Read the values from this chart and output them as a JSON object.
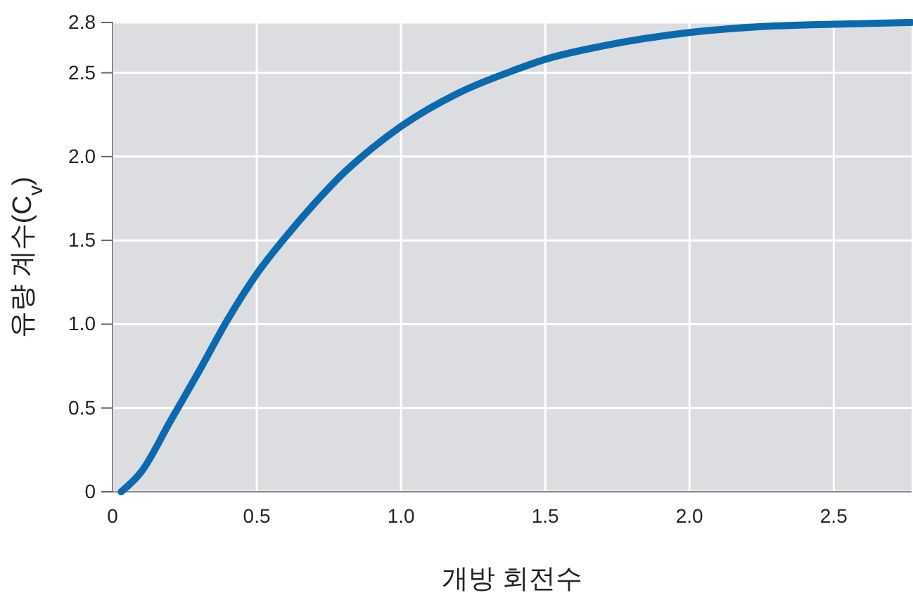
{
  "chart_data": {
    "type": "line",
    "xlabel": "개방 회전수",
    "ylabel": "유량 계수(C$_{v}$)",
    "x": [
      0.03,
      0.1,
      0.2,
      0.3,
      0.4,
      0.5,
      0.6,
      0.7,
      0.8,
      0.9,
      1.0,
      1.2,
      1.4,
      1.5,
      1.7,
      2.0,
      2.3,
      2.5,
      2.77
    ],
    "series": [
      {
        "color": "#0a6aad",
        "values": [
          0,
          0.12,
          0.42,
          0.72,
          1.03,
          1.3,
          1.52,
          1.72,
          1.9,
          2.05,
          2.18,
          2.38,
          2.52,
          2.58,
          2.66,
          2.74,
          2.78,
          2.79,
          2.8
        ]
      }
    ],
    "xlim": [
      0,
      2.77
    ],
    "ylim": [
      0,
      2.8
    ],
    "xticks": [
      0,
      0.5,
      {
        "value": 1,
        "label": "1.0"
      },
      1.5,
      {
        "value": 2,
        "label": "2.0"
      },
      2.5
    ],
    "yticks": [
      0,
      0.5,
      {
        "value": 1,
        "label": "1.0"
      },
      1.5,
      {
        "value": 2,
        "label": "2.0"
      },
      2.5,
      2.8
    ],
    "grid": true,
    "marker": "none",
    "line_style": "solid"
  }
}
